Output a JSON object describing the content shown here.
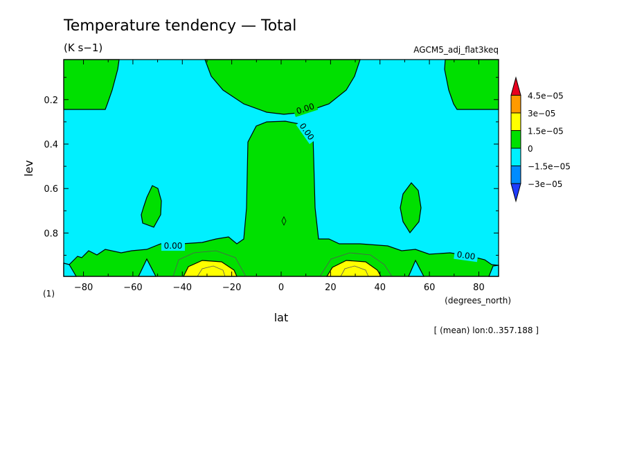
{
  "chart_data": {
    "type": "contour",
    "title": "Temperature tendency — Total",
    "units": "(K s−1)",
    "dataset": "AGCM5_adj_flat3keq",
    "xlabel": "lat",
    "ylabel": "lev",
    "x_units": "(degrees_north)",
    "y_units": "(1)",
    "xlim": [
      -88,
      88
    ],
    "ylim": [
      0.02,
      0.995
    ],
    "y_inverted": true,
    "x_ticks": [
      -80,
      -60,
      -40,
      -20,
      0,
      20,
      40,
      60,
      80
    ],
    "x_tick_labels": [
      "−80",
      "−60",
      "−40",
      "−20",
      "0",
      "20",
      "40",
      "60",
      "80"
    ],
    "y_ticks": [
      0.2,
      0.4,
      0.6,
      0.8
    ],
    "y_tick_labels": [
      "0.2",
      "0.4",
      "0.6",
      "0.8"
    ],
    "note": "[ (mean) lon:0..357.188 ]",
    "contour_labels": [
      "0.00",
      "0.00",
      "0.00",
      "0.00"
    ],
    "colorbar": {
      "levels": [
        "4.5e−05",
        "3e−05",
        "1.5e−05",
        "0",
        "−1.5e−05",
        "−3e−05"
      ],
      "colors": [
        "#e8001e",
        "#ff9a00",
        "#ffff00",
        "#00e000",
        "#00f0ff",
        "#008cff",
        "#1e3cff"
      ]
    },
    "regions": [
      {
        "sign": "positive",
        "lat": [
          -75,
          -55
        ],
        "lev": [
          0.02,
          0.25
        ]
      },
      {
        "sign": "positive",
        "lat": [
          -30,
          30
        ],
        "lev": [
          0.02,
          0.3
        ]
      },
      {
        "sign": "positive",
        "lat": [
          -15,
          15
        ],
        "lev": [
          0.3,
          0.995
        ]
      },
      {
        "sign": "positive",
        "lat": [
          -88,
          88
        ],
        "lev": [
          0.87,
          0.995
        ]
      },
      {
        "sign": "positive",
        "lat": [
          -57,
          -50
        ],
        "lev": [
          0.58,
          0.74
        ]
      },
      {
        "sign": "positive",
        "lat": [
          50,
          57
        ],
        "lev": [
          0.58,
          0.74
        ]
      },
      {
        "sign": "maximum",
        "lat": [
          -38,
          -22
        ],
        "lev": [
          0.94,
          0.995
        ]
      },
      {
        "sign": "maximum",
        "lat": [
          22,
          38
        ],
        "lev": [
          0.94,
          0.995
        ]
      },
      {
        "sign": "negative",
        "lat": [
          -88,
          -75
        ],
        "lev": [
          0.93,
          0.995
        ]
      },
      {
        "sign": "negative",
        "lat": [
          75,
          88
        ],
        "lev": [
          0.93,
          0.995
        ]
      }
    ]
  }
}
